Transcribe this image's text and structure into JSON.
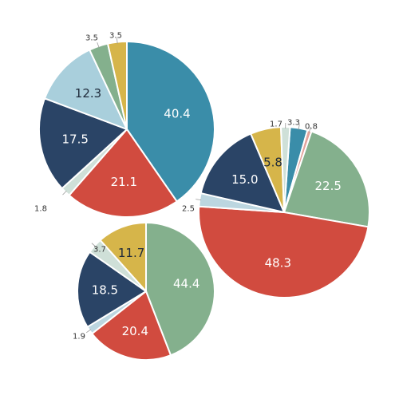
{
  "chart_data": [
    {
      "type": "pie",
      "title": "",
      "slices": [
        {
          "label": "40.4",
          "value": 40.4,
          "color": "#3a8da9",
          "label_color": "#ffffff"
        },
        {
          "label": "21.1",
          "value": 21.1,
          "color": "#d14b3f",
          "label_color": "#ffffff"
        },
        {
          "label": "1.8",
          "value": 1.8,
          "color": "#cfe0d8",
          "label_color": "#333333"
        },
        {
          "label": "17.5",
          "value": 17.5,
          "color": "#2a4466",
          "label_color": "#ffffff"
        },
        {
          "label": "12.3",
          "value": 12.3,
          "color": "#a9cfdc",
          "label_color": "#1e2a3a"
        },
        {
          "label": "3.5",
          "value": 3.5,
          "color": "#84b08d",
          "label_color": "#333333"
        },
        {
          "label": "3.5",
          "value": 3.5,
          "color": "#d6b54a",
          "label_color": "#333333"
        }
      ]
    },
    {
      "type": "pie",
      "title": "",
      "slices": [
        {
          "label": "3.3",
          "value": 3.3,
          "color": "#3a8da9",
          "label_color": "#333333"
        },
        {
          "label": "0.8",
          "value": 0.8,
          "color": "#e3a29b",
          "label_color": "#333333"
        },
        {
          "label": "22.5",
          "value": 22.5,
          "color": "#84b08d",
          "label_color": "#ffffff"
        },
        {
          "label": "48.3",
          "value": 48.3,
          "color": "#d14b3f",
          "label_color": "#ffffff"
        },
        {
          "label": "2.5",
          "value": 2.5,
          "color": "#bcd6e0",
          "label_color": "#333333"
        },
        {
          "label": "15.0",
          "value": 15.0,
          "color": "#2a4466",
          "label_color": "#ffffff"
        },
        {
          "label": "5.8",
          "value": 5.8,
          "color": "#d6b54a",
          "label_color": "#1e2a3a"
        },
        {
          "label": "1.7",
          "value": 1.7,
          "color": "#cfe0d8",
          "label_color": "#333333"
        }
      ]
    },
    {
      "type": "pie",
      "title": "",
      "slices": [
        {
          "label": "44.4",
          "value": 44.4,
          "color": "#84b08d",
          "label_color": "#ffffff"
        },
        {
          "label": "20.4",
          "value": 20.4,
          "color": "#d14b3f",
          "label_color": "#ffffff"
        },
        {
          "label": "1.9",
          "value": 1.9,
          "color": "#bcd6e0",
          "label_color": "#333333"
        },
        {
          "label": "18.5",
          "value": 18.5,
          "color": "#2a4466",
          "label_color": "#ffffff"
        },
        {
          "label": "3.7",
          "value": 3.7,
          "color": "#cfe0d8",
          "label_color": "#333333"
        },
        {
          "label": "11.7",
          "value": 11.7,
          "color": "#d6b54a",
          "label_color": "#1e2a3a"
        }
      ]
    }
  ]
}
